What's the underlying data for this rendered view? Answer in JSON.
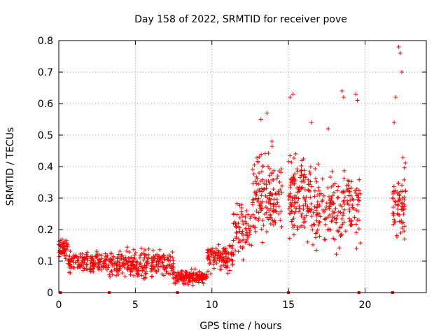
{
  "chart_data": {
    "type": "scatter",
    "title": "Day 158 of 2022, SRMTID for receiver pove",
    "xlabel": "GPS time / hours",
    "ylabel": "SRMTID / TECUs",
    "xlim": [
      0,
      24
    ],
    "ylim": [
      0,
      0.8
    ],
    "xticks": [
      0,
      5,
      10,
      15,
      20
    ],
    "yticks": [
      0,
      0.1,
      0.2,
      0.3,
      0.4,
      0.5,
      0.6,
      0.7,
      0.8
    ],
    "grid": true,
    "marker": "+",
    "color": "#ff0000",
    "series": [
      {
        "name": "SRMTID",
        "bands": [
          {
            "x": [
              0.0,
              0.6
            ],
            "ymin": 0.1,
            "ymax": 0.18,
            "n": 50
          },
          {
            "x": [
              0.6,
              3.3
            ],
            "ymin": 0.05,
            "ymax": 0.14,
            "n": 150
          },
          {
            "x": [
              3.3,
              7.5
            ],
            "ymin": 0.03,
            "ymax": 0.15,
            "n": 260
          },
          {
            "x": [
              7.5,
              9.7
            ],
            "ymin": 0.02,
            "ymax": 0.08,
            "n": 160
          },
          {
            "x": [
              9.7,
              11.4
            ],
            "ymin": 0.05,
            "ymax": 0.17,
            "n": 110
          },
          {
            "x": [
              11.4,
              12.6
            ],
            "ymin": 0.07,
            "ymax": 0.32,
            "n": 70
          },
          {
            "x": [
              12.6,
              14.6
            ],
            "ymin": 0.12,
            "ymax": 0.5,
            "n": 150
          },
          {
            "x": [
              15.0,
              16.0
            ],
            "ymin": 0.12,
            "ymax": 0.5,
            "n": 100
          },
          {
            "x": [
              16.0,
              19.7
            ],
            "ymin": 0.1,
            "ymax": 0.45,
            "n": 230
          },
          {
            "x": [
              21.8,
              22.7
            ],
            "ymin": 0.12,
            "ymax": 0.45,
            "n": 70
          }
        ],
        "peaks": [
          {
            "x": 13.2,
            "y": 0.55
          },
          {
            "x": 13.6,
            "y": 0.57
          },
          {
            "x": 15.1,
            "y": 0.62
          },
          {
            "x": 15.3,
            "y": 0.63
          },
          {
            "x": 18.5,
            "y": 0.64
          },
          {
            "x": 18.6,
            "y": 0.62
          },
          {
            "x": 19.4,
            "y": 0.63
          },
          {
            "x": 19.5,
            "y": 0.61
          },
          {
            "x": 22.0,
            "y": 0.62
          },
          {
            "x": 22.2,
            "y": 0.78
          },
          {
            "x": 22.3,
            "y": 0.76
          },
          {
            "x": 22.4,
            "y": 0.7
          },
          {
            "x": 21.9,
            "y": 0.54
          },
          {
            "x": 16.5,
            "y": 0.54
          },
          {
            "x": 17.6,
            "y": 0.52
          }
        ]
      }
    ],
    "zero_markers": [
      0.1,
      3.3,
      7.75,
      15.0,
      19.6,
      21.8
    ]
  }
}
